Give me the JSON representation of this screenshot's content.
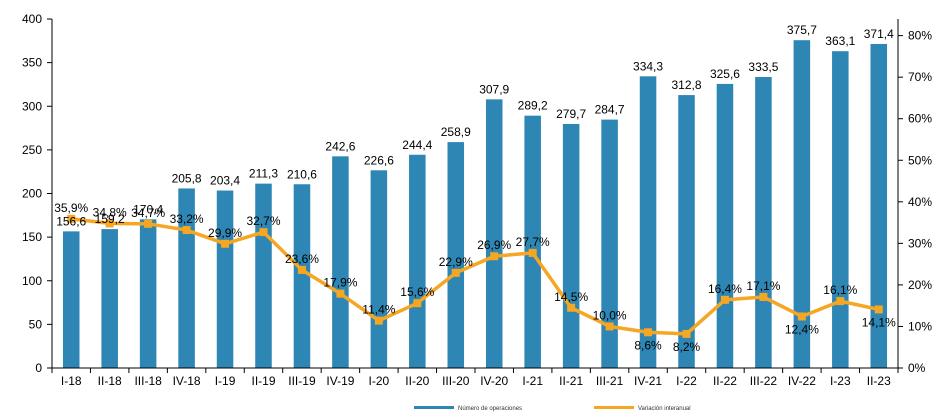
{
  "chart_data": {
    "type": "bar",
    "categories": [
      "I-18",
      "II-18",
      "III-18",
      "IV-18",
      "I-19",
      "II-19",
      "III-19",
      "IV-19",
      "I-20",
      "II-20",
      "III-20",
      "IV-20",
      "I-21",
      "II-21",
      "III-21",
      "IV-21",
      "I-22",
      "II-22",
      "III-22",
      "IV-22",
      "I-23",
      "II-23"
    ],
    "series": [
      {
        "name": "Número de operaciones",
        "axis": "left",
        "type": "bar",
        "color": "#2E86B4",
        "values": [
          156.6,
          159.2,
          170.4,
          205.8,
          203.4,
          211.3,
          210.6,
          242.6,
          226.6,
          244.4,
          258.9,
          307.9,
          289.2,
          279.7,
          284.7,
          334.3,
          312.8,
          325.6,
          333.5,
          375.7,
          363.1,
          371.4
        ],
        "labels": [
          "156,6",
          "159,2",
          "170,4",
          "205,8",
          "203,4",
          "211,3",
          "210,6",
          "242,6",
          "226,6",
          "244,4",
          "258,9",
          "307,9",
          "289,2",
          "279,7",
          "284,7",
          "334,3",
          "312,8",
          "325,6",
          "333,5",
          "375,7",
          "363,1",
          "371,4"
        ]
      },
      {
        "name": "Variación interanual",
        "axis": "right",
        "type": "line",
        "color": "#F5A623",
        "values": [
          35.9,
          34.8,
          34.7,
          33.2,
          29.9,
          32.7,
          23.6,
          17.9,
          11.4,
          15.6,
          22.9,
          26.9,
          27.7,
          14.5,
          10.0,
          8.6,
          8.2,
          16.4,
          17.1,
          12.4,
          16.1,
          14.1
        ],
        "labels": [
          "35,9%",
          "34,8%",
          "34,7%",
          "33,2%",
          "29,9%",
          "32,7%",
          "23,6%",
          "17,9%",
          "11,4%",
          "15,6%",
          "22,9%",
          "26,9%",
          "27,7%",
          "14,5%",
          "10,0%",
          "8,6%",
          "8,2%",
          "16,4%",
          "17,1%",
          "12,4%",
          "16,1%",
          "14,1%"
        ]
      }
    ],
    "y_left": {
      "min": 0,
      "max": 400,
      "ticks": [
        "0",
        "50",
        "100",
        "150",
        "200",
        "250",
        "300",
        "350",
        "400"
      ]
    },
    "y_right": {
      "min": 0,
      "max": 84,
      "ticks": [
        "0%",
        "10%",
        "20%",
        "30%",
        "40%",
        "50%",
        "60%",
        "70%",
        "80%"
      ]
    },
    "grid": false,
    "legend_position": "bottom"
  }
}
